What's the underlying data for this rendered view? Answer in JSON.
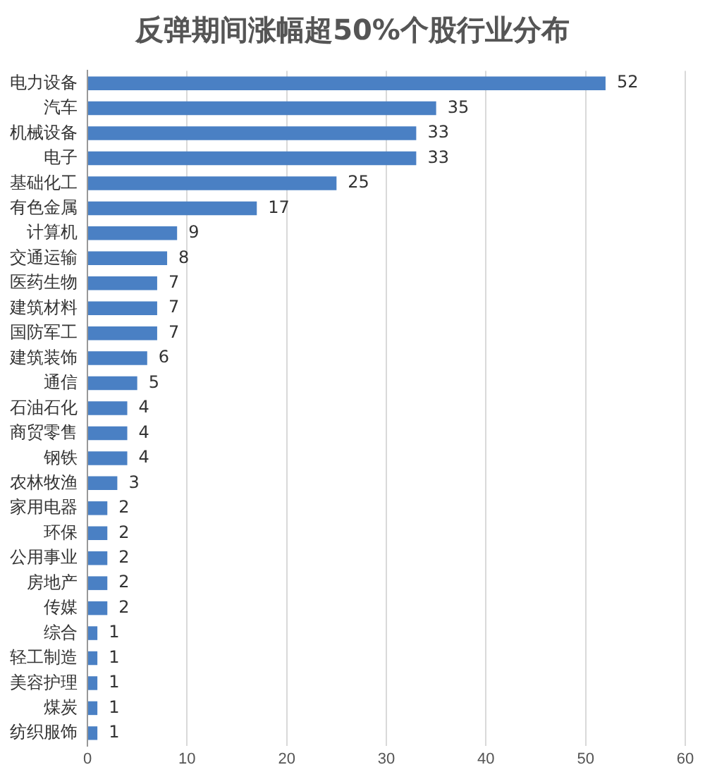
{
  "chart_data": {
    "type": "bar",
    "orientation": "horizontal",
    "title": "反弹期间涨幅超50%个股行业分布",
    "categories": [
      "电力设备",
      "汽车",
      "机械设备",
      "电子",
      "基础化工",
      "有色金属",
      "计算机",
      "交通运输",
      "医药生物",
      "建筑材料",
      "国防军工",
      "建筑装饰",
      "通信",
      "石油石化",
      "商贸零售",
      "钢铁",
      "农林牧渔",
      "家用电器",
      "环保",
      "公用事业",
      "房地产",
      "传媒",
      "综合",
      "轻工制造",
      "美容护理",
      "煤炭",
      "纺织服饰"
    ],
    "values": [
      52,
      35,
      33,
      33,
      25,
      17,
      9,
      8,
      7,
      7,
      7,
      6,
      5,
      4,
      4,
      4,
      3,
      2,
      2,
      2,
      2,
      2,
      1,
      1,
      1,
      1,
      1
    ],
    "color": "#4a80c4",
    "xlim": [
      0,
      60
    ],
    "xticks": [
      0,
      10,
      20,
      30,
      40,
      50,
      60
    ],
    "grid": "x",
    "data_labels": true,
    "legend": false
  }
}
